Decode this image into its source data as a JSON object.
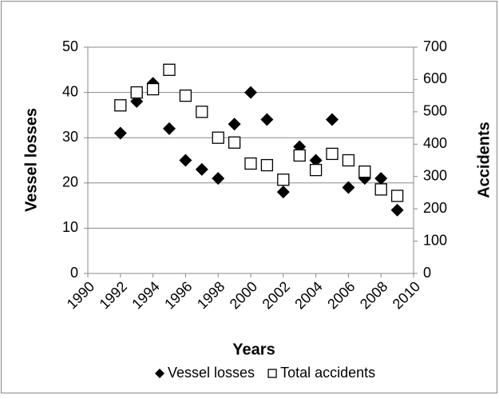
{
  "chart_data": {
    "type": "scatter",
    "x_label": "Years",
    "y_label": "Vessel losses",
    "y2_label": "Accidents",
    "xlim": [
      1990,
      2010
    ],
    "xticks": [
      1990,
      1992,
      1994,
      1996,
      1998,
      2000,
      2002,
      2004,
      2006,
      2008,
      2010
    ],
    "ylim": [
      0,
      50
    ],
    "yticks": [
      0,
      10,
      20,
      30,
      40,
      50
    ],
    "y2lim": [
      0,
      700
    ],
    "y2ticks": [
      0,
      100,
      200,
      300,
      400,
      500,
      600,
      700
    ],
    "grid": true,
    "legend": "bottom",
    "series": [
      {
        "name": "Vessel losses",
        "color": "#000000",
        "marker": "diamond",
        "x": [
          1992,
          1993,
          1994,
          1995,
          1996,
          1997,
          1998,
          1999,
          2000,
          2001,
          2002,
          2003,
          2004,
          2005,
          2006,
          2007,
          2008,
          2009
        ],
        "values": [
          31,
          38,
          42,
          32,
          25,
          23,
          21,
          33,
          40,
          34,
          18,
          28,
          25,
          34,
          19,
          21,
          21,
          14
        ]
      },
      {
        "name": "Total accidents",
        "color": "#000000",
        "marker": "square",
        "axis": "y2",
        "x": [
          1992,
          1993,
          1994,
          1995,
          1996,
          1997,
          1998,
          1999,
          2000,
          2001,
          2002,
          2003,
          2004,
          2005,
          2006,
          2007,
          2008,
          2009
        ],
        "values": [
          520,
          560,
          570,
          630,
          550,
          500,
          420,
          405,
          340,
          335,
          290,
          365,
          320,
          370,
          350,
          315,
          260,
          240
        ]
      }
    ]
  }
}
